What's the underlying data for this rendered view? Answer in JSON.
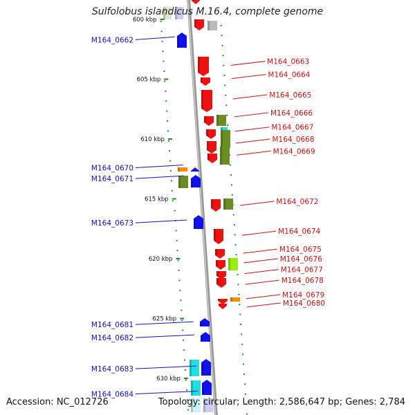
{
  "title": "Sulfolobus islandicus M.16.4, complete genome",
  "footer": {
    "accession": "Accession: NC_012726",
    "topology": "Topology: circular",
    "length": "Length: 2,586,647 bp",
    "genes": "Genes: 2,784"
  },
  "colors": {
    "left_label": "#1010c8",
    "right_label": "#d01010",
    "red": "#ee1111",
    "blue": "#1111ee",
    "olive": "#6b8e23",
    "cyan": "#22dddd",
    "orange": "#ff8c00",
    "lime": "#99ee11",
    "gray": "#bbbbbb",
    "backbone": "#999999",
    "ticks": "#228b22"
  },
  "scale_labels": [
    {
      "text": "600 kbp",
      "kbp": 600
    },
    {
      "text": "605 kbp",
      "kbp": 605
    },
    {
      "text": "610 kbp",
      "kbp": 610
    },
    {
      "text": "615 kbp",
      "kbp": 615
    },
    {
      "text": "620 kbp",
      "kbp": 620
    },
    {
      "text": "625 kbp",
      "kbp": 625
    },
    {
      "text": "630 kbp",
      "kbp": 630
    }
  ],
  "genes_left": [
    {
      "label": "M164_0662",
      "kbp": 601.7
    },
    {
      "label": "M164_0670",
      "kbp": 612.4
    },
    {
      "label": "M164_0671",
      "kbp": 613.3
    },
    {
      "label": "M164_0673",
      "kbp": 617.0
    },
    {
      "label": "M164_0681",
      "kbp": 625.5
    },
    {
      "label": "M164_0682",
      "kbp": 626.6
    },
    {
      "label": "M164_0683",
      "kbp": 629.2
    },
    {
      "label": "M164_0684",
      "kbp": 631.3
    }
  ],
  "genes_right": [
    {
      "label": "M164_0663",
      "kbp": 603.5
    },
    {
      "label": "M164_0664",
      "kbp": 604.6
    },
    {
      "label": "M164_0665",
      "kbp": 606.3
    },
    {
      "label": "M164_0666",
      "kbp": 607.8
    },
    {
      "label": "M164_0667",
      "kbp": 609.0
    },
    {
      "label": "M164_0668",
      "kbp": 610.0
    },
    {
      "label": "M164_0669",
      "kbp": 611.0
    },
    {
      "label": "M164_0672",
      "kbp": 615.2
    },
    {
      "label": "M164_0674",
      "kbp": 617.7
    },
    {
      "label": "M164_0675",
      "kbp": 619.2
    },
    {
      "label": "M164_0676",
      "kbp": 620.0
    },
    {
      "label": "M164_0677",
      "kbp": 620.9
    },
    {
      "label": "M164_0678",
      "kbp": 621.8
    },
    {
      "label": "M164_0679",
      "kbp": 623.0
    },
    {
      "label": "M164_0680",
      "kbp": 623.7
    }
  ]
}
